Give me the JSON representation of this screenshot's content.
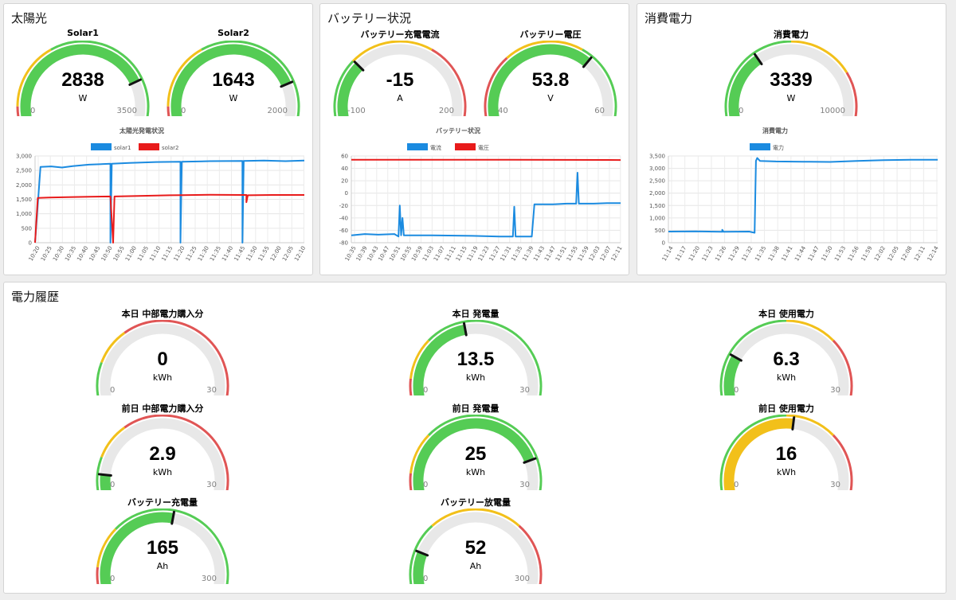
{
  "panels": {
    "solar": {
      "title": "太陽光"
    },
    "battery": {
      "title": "バッテリー状況"
    },
    "consumption": {
      "title": "消費電力"
    },
    "history": {
      "title": "電力履歴"
    }
  },
  "colors": {
    "green": "#55cc55",
    "yellow": "#f2c01a",
    "red": "#e05555",
    "track": "#e8e8e8",
    "blue": "#1b8be0",
    "series_red": "#e81b1b"
  },
  "gauges": [
    {
      "id": "g-solar1",
      "title": "Solar1",
      "value": 2838,
      "display": "2838",
      "unit": "W",
      "min": 0,
      "max": 3500,
      "min_label": "0",
      "max_label": "3500",
      "bands": [
        [
          "red",
          0,
          0.07
        ],
        [
          "yellow",
          0.07,
          0.36
        ],
        [
          "green",
          0.36,
          1
        ]
      ],
      "fill": "green"
    },
    {
      "id": "g-solar2",
      "title": "Solar2",
      "value": 1643,
      "display": "1643",
      "unit": "W",
      "min": 0,
      "max": 2000,
      "min_label": "0",
      "max_label": "2000",
      "bands": [
        [
          "red",
          0,
          0.07
        ],
        [
          "yellow",
          0.07,
          0.36
        ],
        [
          "green",
          0.36,
          1
        ]
      ],
      "fill": "green"
    },
    {
      "id": "g-batt-current",
      "title": "バッテリー充電電流",
      "value": -15,
      "display": "-15",
      "unit": "A",
      "min": -100,
      "max": 200,
      "min_label": "-100",
      "max_label": "200",
      "bands": [
        [
          "green",
          0,
          0.28
        ],
        [
          "yellow",
          0.28,
          0.64
        ],
        [
          "red",
          0.64,
          1
        ]
      ],
      "fill": "green"
    },
    {
      "id": "g-batt-voltage",
      "title": "バッテリー電圧",
      "value": 53.8,
      "display": "53.8",
      "unit": "V",
      "min": 40,
      "max": 60,
      "min_label": "40",
      "max_label": "60",
      "bands": [
        [
          "red",
          0,
          0.3
        ],
        [
          "yellow",
          0.3,
          0.64
        ],
        [
          "green",
          0.64,
          1
        ]
      ],
      "fill": "green"
    },
    {
      "id": "g-consumption",
      "title": "消費電力",
      "value": 3339,
      "display": "3339",
      "unit": "W",
      "min": 0,
      "max": 10000,
      "min_label": "0",
      "max_label": "10000",
      "bands": [
        [
          "green",
          0,
          0.5
        ],
        [
          "yellow",
          0.5,
          0.78
        ],
        [
          "red",
          0.78,
          1
        ]
      ],
      "fill": "green"
    },
    {
      "id": "g-today-buy",
      "title": "本日 中部電力購入分",
      "value": 0,
      "display": "0",
      "unit": "kWh",
      "min": 0,
      "max": 30,
      "min_label": "0",
      "max_label": "30",
      "bands": [
        [
          "green",
          0,
          0.17
        ],
        [
          "yellow",
          0.17,
          0.33
        ],
        [
          "red",
          0.33,
          1
        ]
      ],
      "fill": "green"
    },
    {
      "id": "g-today-gen",
      "title": "本日 発電量",
      "value": 13.5,
      "display": "13.5",
      "unit": "kWh",
      "min": 0,
      "max": 30,
      "min_label": "0",
      "max_label": "30",
      "bands": [
        [
          "red",
          0,
          0.1
        ],
        [
          "yellow",
          0.1,
          0.28
        ],
        [
          "green",
          0.28,
          1
        ]
      ],
      "fill": "green"
    },
    {
      "id": "g-today-use",
      "title": "本日 使用電力",
      "value": 6.3,
      "display": "6.3",
      "unit": "kWh",
      "min": 0,
      "max": 30,
      "min_label": "0",
      "max_label": "30",
      "bands": [
        [
          "green",
          0,
          0.5
        ],
        [
          "yellow",
          0.5,
          0.72
        ],
        [
          "red",
          0.72,
          1
        ]
      ],
      "fill": "green"
    },
    {
      "id": "g-prev-buy",
      "title": "前日 中部電力購入分",
      "value": 2.9,
      "display": "2.9",
      "unit": "kWh",
      "min": 0,
      "max": 30,
      "min_label": "0",
      "max_label": "30",
      "bands": [
        [
          "green",
          0,
          0.17
        ],
        [
          "yellow",
          0.17,
          0.33
        ],
        [
          "red",
          0.33,
          1
        ]
      ],
      "fill": "green"
    },
    {
      "id": "g-prev-gen",
      "title": "前日 発電量",
      "value": 25,
      "display": "25",
      "unit": "kWh",
      "min": 0,
      "max": 30,
      "min_label": "0",
      "max_label": "30",
      "bands": [
        [
          "red",
          0,
          0.1
        ],
        [
          "yellow",
          0.1,
          0.28
        ],
        [
          "green",
          0.28,
          1
        ]
      ],
      "fill": "green"
    },
    {
      "id": "g-prev-use",
      "title": "前日 使用電力",
      "value": 16,
      "display": "16",
      "unit": "kWh",
      "min": 0,
      "max": 30,
      "min_label": "0",
      "max_label": "30",
      "bands": [
        [
          "green",
          0,
          0.5
        ],
        [
          "yellow",
          0.5,
          0.72
        ],
        [
          "red",
          0.72,
          1
        ]
      ],
      "fill": "yellow"
    },
    {
      "id": "g-batt-charge",
      "title": "バッテリー充電量",
      "value": 165,
      "display": "165",
      "unit": "Ah",
      "min": 0,
      "max": 300,
      "min_label": "0",
      "max_label": "300",
      "bands": [
        [
          "red",
          0,
          0.1
        ],
        [
          "yellow",
          0.1,
          0.28
        ],
        [
          "green",
          0.28,
          1
        ]
      ],
      "fill": "green"
    },
    {
      "id": "g-batt-discharge",
      "title": "バッテリー放電量",
      "value": 52,
      "display": "52",
      "unit": "Ah",
      "min": 0,
      "max": 300,
      "min_label": "0",
      "max_label": "300",
      "bands": [
        [
          "green",
          0,
          0.3
        ],
        [
          "yellow",
          0.3,
          0.7
        ],
        [
          "red",
          0.7,
          1
        ]
      ],
      "fill": "green"
    }
  ],
  "chart_data": [
    {
      "id": "c-solar",
      "type": "line",
      "title": "太陽光発電状況",
      "xlabel": "",
      "ylabel": "",
      "ylim": [
        0,
        3000
      ],
      "yticks": [
        0,
        500,
        1000,
        1500,
        2000,
        2500,
        3000
      ],
      "ytick_labels": [
        "0",
        "500",
        "1,000",
        "1,500",
        "2,000",
        "2,500",
        "3,000"
      ],
      "categories": [
        "10:20",
        "10:25",
        "10:30",
        "10:35",
        "10:40",
        "10:45",
        "10:50",
        "10:55",
        "11:00",
        "11:05",
        "11:10",
        "11:15",
        "11:20",
        "11:25",
        "11:30",
        "11:35",
        "11:40",
        "11:45",
        "11:50",
        "11:55",
        "12:00",
        "12:05",
        "12:10"
      ],
      "legend": "top",
      "series": [
        {
          "name": "solar1",
          "color": "blue",
          "points": [
            [
              0,
              0
            ],
            [
              0.02,
              2620
            ],
            [
              0.06,
              2640
            ],
            [
              0.1,
              2600
            ],
            [
              0.14,
              2650
            ],
            [
              0.2,
              2700
            ],
            [
              0.28,
              2730
            ],
            [
              0.28,
              0
            ],
            [
              0.285,
              2730
            ],
            [
              0.35,
              2760
            ],
            [
              0.45,
              2790
            ],
            [
              0.54,
              2800
            ],
            [
              0.54,
              0
            ],
            [
              0.545,
              2800
            ],
            [
              0.65,
              2820
            ],
            [
              0.77,
              2830
            ],
            [
              0.77,
              0
            ],
            [
              0.775,
              2830
            ],
            [
              0.85,
              2840
            ],
            [
              0.93,
              2820
            ],
            [
              1,
              2840
            ]
          ]
        },
        {
          "name": "solar2",
          "color": "series_red",
          "points": [
            [
              0,
              0
            ],
            [
              0.01,
              1550
            ],
            [
              0.05,
              1560
            ],
            [
              0.12,
              1575
            ],
            [
              0.2,
              1590
            ],
            [
              0.28,
              1600
            ],
            [
              0.29,
              0
            ],
            [
              0.295,
              1600
            ],
            [
              0.4,
              1620
            ],
            [
              0.5,
              1640
            ],
            [
              0.54,
              1645
            ],
            [
              0.545,
              1645
            ],
            [
              0.65,
              1660
            ],
            [
              0.77,
              1650
            ],
            [
              0.785,
              1650
            ],
            [
              0.785,
              1400
            ],
            [
              0.79,
              1640
            ],
            [
              0.88,
              1650
            ],
            [
              1,
              1650
            ]
          ]
        }
      ]
    },
    {
      "id": "c-battery",
      "type": "line",
      "title": "バッテリー状況",
      "xlabel": "",
      "ylabel": "",
      "ylim": [
        -80,
        60
      ],
      "yticks": [
        -80,
        -60,
        -40,
        -20,
        0,
        20,
        40,
        60
      ],
      "ytick_labels": [
        "-80",
        "-60",
        "-40",
        "-20",
        "0",
        "20",
        "40",
        "60"
      ],
      "categories": [
        "10:35",
        "10:39",
        "10:43",
        "10:47",
        "10:51",
        "10:55",
        "10:59",
        "11:03",
        "11:07",
        "11:11",
        "11:15",
        "11:19",
        "11:23",
        "11:27",
        "11:31",
        "11:35",
        "11:39",
        "11:43",
        "11:47",
        "11:51",
        "11:55",
        "11:59",
        "12:03",
        "12:07",
        "12:11"
      ],
      "legend": "top",
      "series": [
        {
          "name": "電流",
          "color": "blue",
          "points": [
            [
              0,
              -68
            ],
            [
              0.05,
              -66
            ],
            [
              0.1,
              -67
            ],
            [
              0.16,
              -66
            ],
            [
              0.175,
              -70
            ],
            [
              0.18,
              -20
            ],
            [
              0.185,
              -68
            ],
            [
              0.19,
              -40
            ],
            [
              0.195,
              -68
            ],
            [
              0.3,
              -68
            ],
            [
              0.45,
              -69
            ],
            [
              0.55,
              -70
            ],
            [
              0.6,
              -70
            ],
            [
              0.605,
              -22
            ],
            [
              0.61,
              -70
            ],
            [
              0.67,
              -70
            ],
            [
              0.68,
              -18
            ],
            [
              0.75,
              -18
            ],
            [
              0.8,
              -17
            ],
            [
              0.835,
              -17
            ],
            [
              0.84,
              33
            ],
            [
              0.845,
              -17
            ],
            [
              0.9,
              -17
            ],
            [
              0.95,
              -16
            ],
            [
              1,
              -16
            ]
          ]
        },
        {
          "name": "電圧",
          "color": "series_red",
          "points": [
            [
              0,
              54
            ],
            [
              0.3,
              54
            ],
            [
              0.6,
              54
            ],
            [
              1,
              53.5
            ]
          ]
        }
      ]
    },
    {
      "id": "c-consumption",
      "type": "line",
      "title": "消費電力",
      "xlabel": "",
      "ylabel": "",
      "ylim": [
        0,
        3500
      ],
      "yticks": [
        0,
        500,
        1000,
        1500,
        2000,
        2500,
        3000,
        3500
      ],
      "ytick_labels": [
        "0",
        "500",
        "1,000",
        "1,500",
        "2,000",
        "2,500",
        "3,000",
        "3,500"
      ],
      "categories": [
        "11:14",
        "11:17",
        "11:20",
        "11:23",
        "11:26",
        "11:29",
        "11:32",
        "11:35",
        "11:38",
        "11:41",
        "11:44",
        "11:47",
        "11:50",
        "11:53",
        "11:56",
        "11:59",
        "12:02",
        "12:05",
        "12:08",
        "12:11",
        "12:14"
      ],
      "legend": "top",
      "series": [
        {
          "name": "電力",
          "color": "blue",
          "points": [
            [
              0,
              450
            ],
            [
              0.1,
              460
            ],
            [
              0.2,
              440
            ],
            [
              0.2,
              520
            ],
            [
              0.205,
              440
            ],
            [
              0.3,
              450
            ],
            [
              0.32,
              400
            ],
            [
              0.325,
              3300
            ],
            [
              0.33,
              3420
            ],
            [
              0.34,
              3300
            ],
            [
              0.4,
              3280
            ],
            [
              0.5,
              3270
            ],
            [
              0.6,
              3260
            ],
            [
              0.7,
              3300
            ],
            [
              0.8,
              3330
            ],
            [
              0.9,
              3350
            ],
            [
              1,
              3350
            ]
          ]
        }
      ]
    }
  ]
}
